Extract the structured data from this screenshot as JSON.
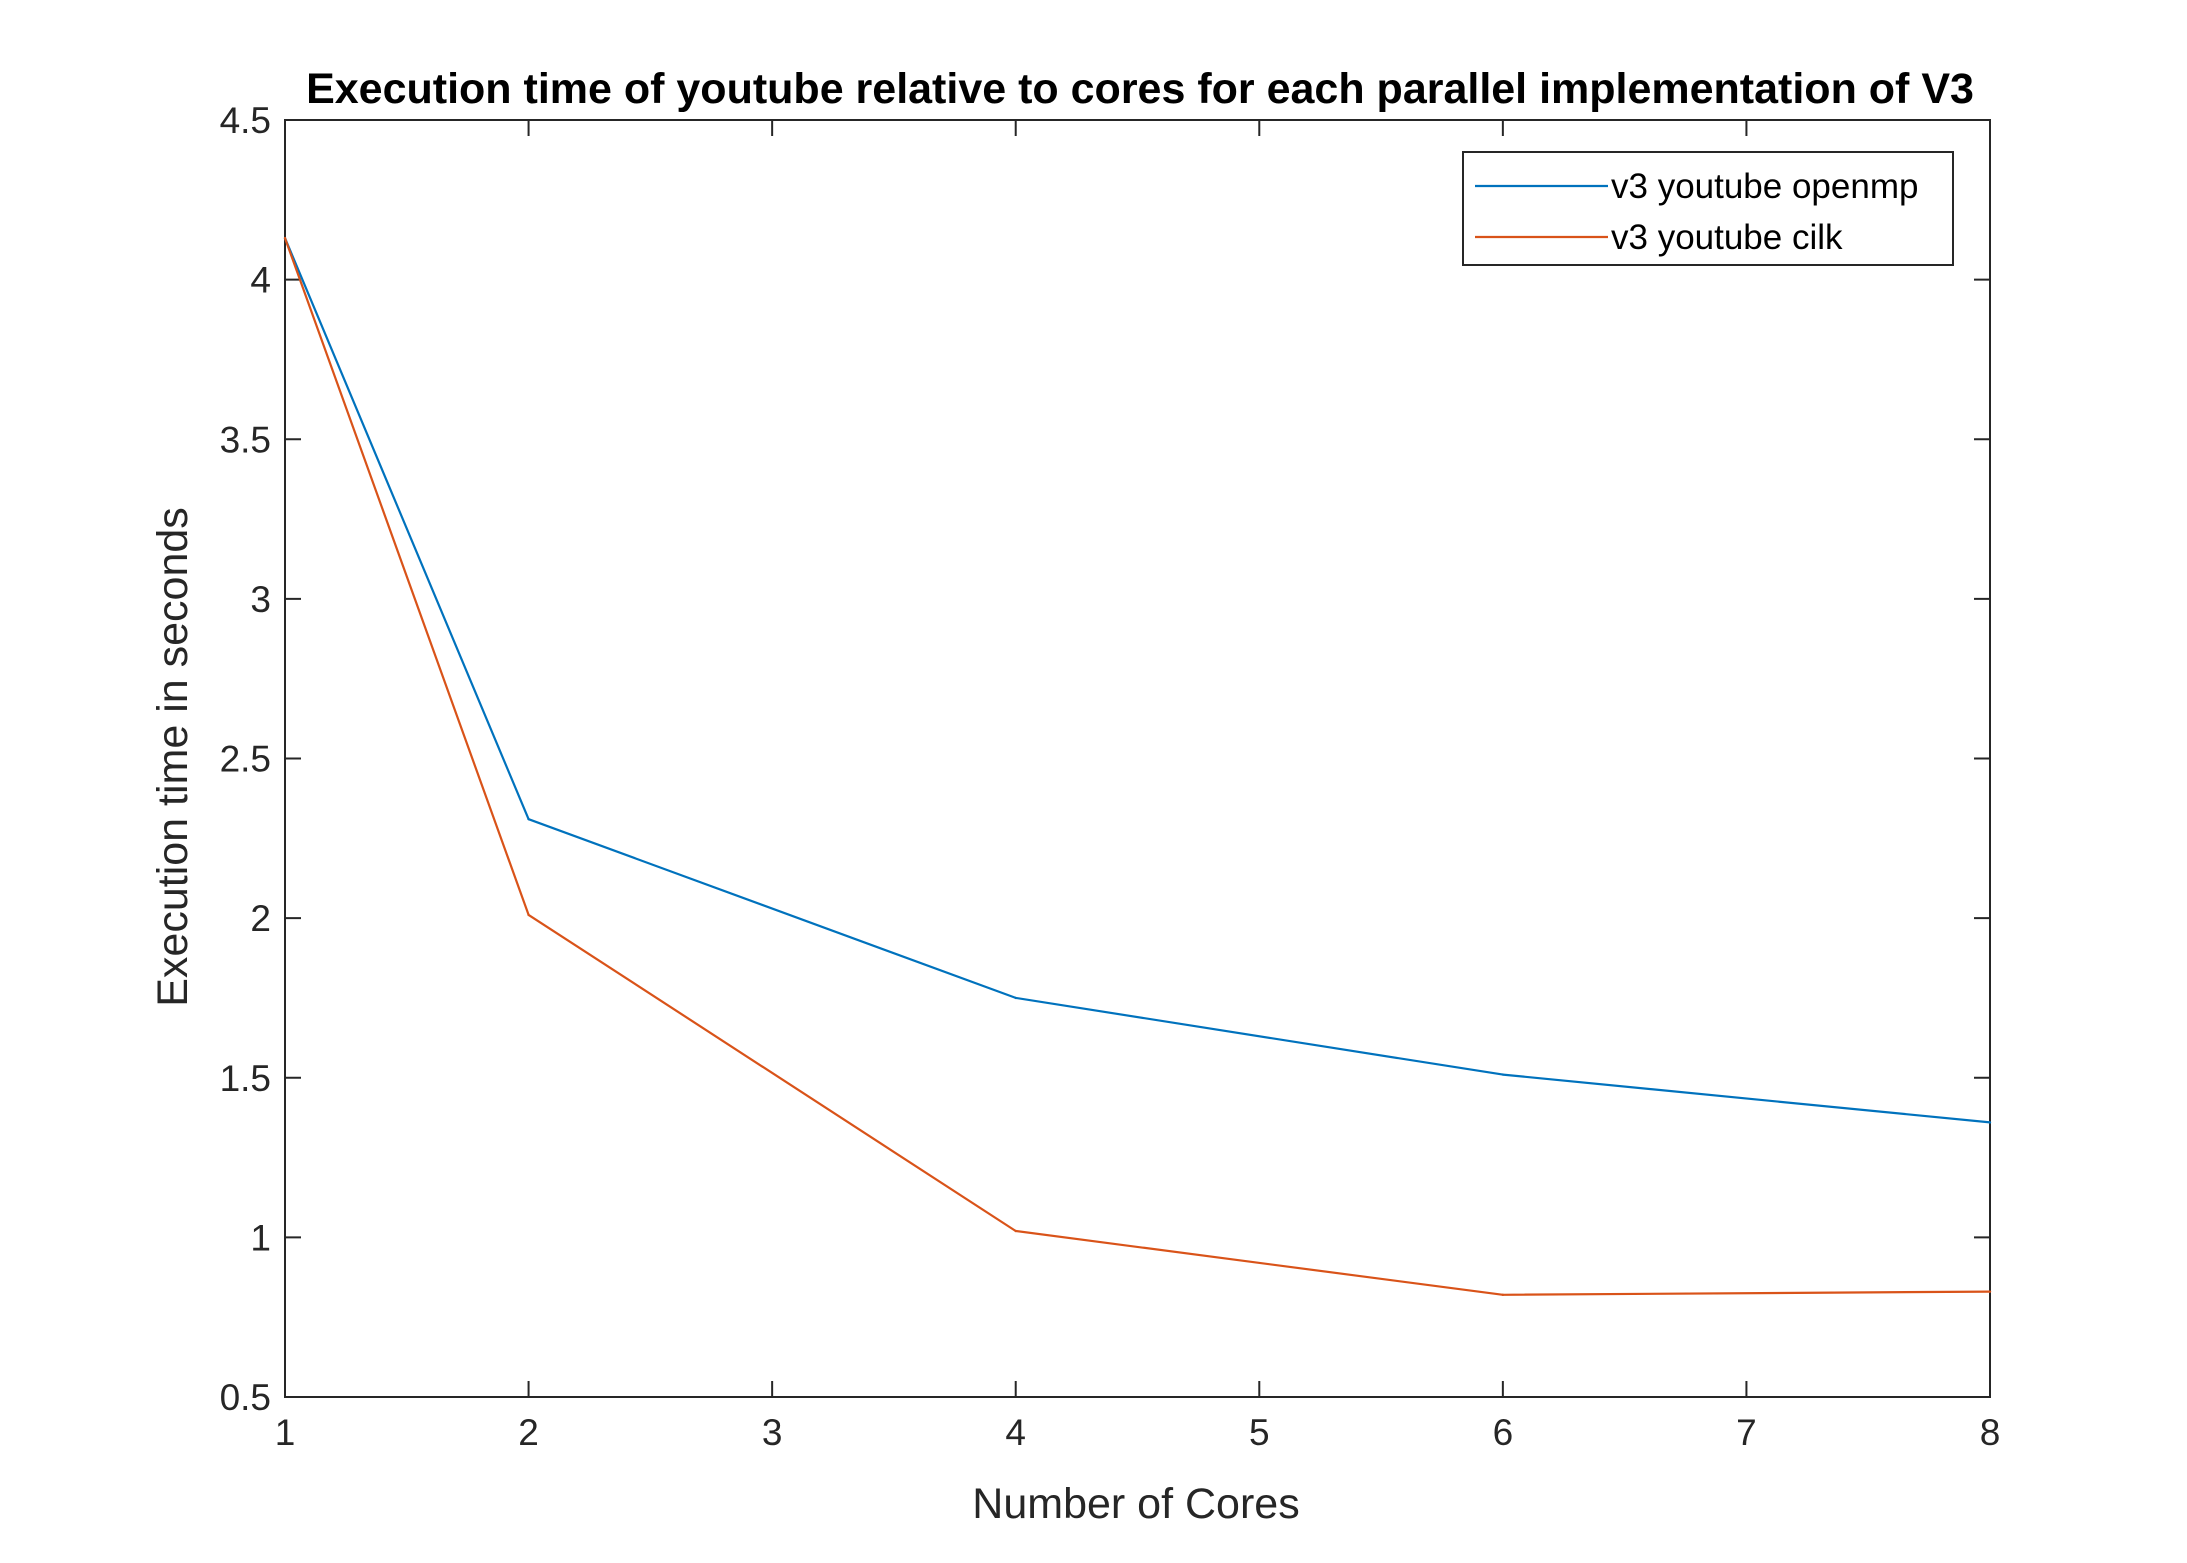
{
  "chart_data": {
    "type": "line",
    "title": "Execution time of youtube relative to cores for each parallel implementation of V3",
    "xlabel": "Number of Cores",
    "ylabel": "Execution time in seconds",
    "xlim": [
      1,
      8
    ],
    "ylim": [
      0.5,
      4.5
    ],
    "xticks": [
      1,
      2,
      3,
      4,
      5,
      6,
      7,
      8
    ],
    "xtick_labels": [
      "1",
      "2",
      "3",
      "4",
      "5",
      "6",
      "7",
      "8"
    ],
    "yticks": [
      0.5,
      1,
      1.5,
      2,
      2.5,
      3,
      3.5,
      4,
      4.5
    ],
    "ytick_labels": [
      "0.5",
      "1",
      "1.5",
      "2",
      "2.5",
      "3",
      "3.5",
      "4",
      "4.5"
    ],
    "grid": false,
    "legend_position": "top-right",
    "series": [
      {
        "name": "v3 youtube openmp",
        "color": "#0072BD",
        "x": [
          1,
          2,
          4,
          6,
          8
        ],
        "values": [
          4.13,
          2.31,
          1.75,
          1.51,
          1.36
        ]
      },
      {
        "name": "v3 youtube cilk",
        "color": "#D95319",
        "x": [
          1,
          2,
          4,
          6,
          8
        ],
        "values": [
          4.13,
          2.01,
          1.02,
          0.82,
          0.83
        ]
      }
    ]
  }
}
